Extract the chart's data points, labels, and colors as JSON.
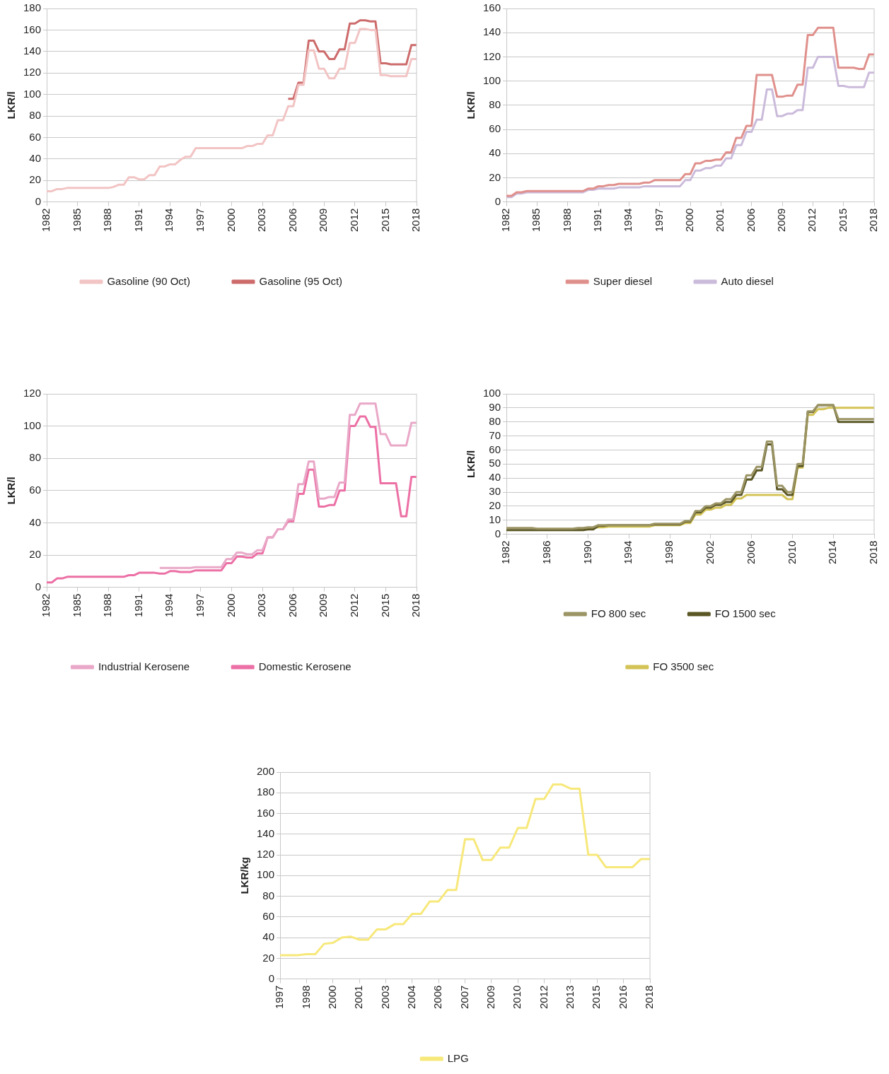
{
  "chart_data": [
    {
      "type": "line",
      "ylabel": "LKR/l",
      "grid": "y",
      "legend": "bottom",
      "marker": "none",
      "categories": [
        "1982",
        null,
        null,
        null,
        null,
        null,
        "1985",
        null,
        null,
        null,
        null,
        null,
        "1988",
        null,
        null,
        null,
        null,
        null,
        "1991",
        null,
        null,
        null,
        null,
        null,
        "1994",
        null,
        null,
        null,
        null,
        null,
        "1997",
        null,
        null,
        null,
        null,
        null,
        "2000",
        null,
        null,
        null,
        null,
        null,
        "2003",
        null,
        null,
        null,
        null,
        null,
        "2006",
        null,
        null,
        null,
        null,
        null,
        "2009",
        null,
        null,
        null,
        null,
        null,
        "2012",
        null,
        null,
        null,
        null,
        null,
        "2015",
        null,
        null,
        null,
        null,
        null,
        "2018"
      ],
      "ylim": [
        0,
        180
      ],
      "yticks": [
        0,
        20,
        40,
        60,
        80,
        100,
        120,
        140,
        160,
        180
      ],
      "series": [
        {
          "name": "Gasoline (90 Oct)",
          "color": "#f2c4c4",
          "values": [
            10,
            10,
            12,
            12,
            13,
            13,
            13,
            13,
            13,
            13,
            13,
            13,
            13,
            14,
            16,
            16,
            23,
            23,
            21,
            21,
            25,
            25,
            33,
            33,
            35,
            35,
            39,
            42,
            42,
            50,
            50,
            50,
            50,
            50,
            50,
            50,
            50,
            50,
            50,
            52,
            52,
            54,
            54,
            62,
            62,
            76,
            76,
            89,
            89,
            109,
            109,
            141,
            141,
            124,
            124,
            115,
            115,
            124,
            124,
            148,
            148,
            161,
            161,
            160,
            160,
            118,
            118,
            117,
            117,
            117,
            117,
            133,
            133
          ]
        },
        {
          "name": "Gasoline (95 Oct)",
          "color": "#cd6b6b",
          "values": [
            null,
            null,
            null,
            null,
            null,
            null,
            null,
            null,
            null,
            null,
            null,
            null,
            null,
            null,
            null,
            null,
            null,
            null,
            null,
            null,
            null,
            null,
            null,
            null,
            null,
            null,
            null,
            null,
            null,
            null,
            null,
            null,
            null,
            null,
            null,
            null,
            null,
            null,
            null,
            null,
            null,
            null,
            null,
            null,
            null,
            null,
            null,
            96,
            96,
            111,
            111,
            150,
            150,
            140,
            140,
            133,
            133,
            142,
            142,
            166,
            166,
            169,
            169,
            168,
            168,
            129,
            129,
            128,
            128,
            128,
            128,
            146,
            146
          ]
        }
      ]
    },
    {
      "type": "line",
      "ylabel": "LKR/l",
      "grid": "y",
      "legend": "bottom",
      "marker": "none",
      "categories": [
        "1982",
        null,
        null,
        null,
        null,
        null,
        "1985",
        null,
        null,
        null,
        null,
        null,
        "1988",
        null,
        null,
        null,
        null,
        null,
        "1991",
        null,
        null,
        null,
        null,
        null,
        "1994",
        null,
        null,
        null,
        null,
        null,
        "1997",
        null,
        null,
        null,
        null,
        null,
        "2000",
        null,
        null,
        null,
        null,
        null,
        "2001",
        null,
        null,
        null,
        null,
        null,
        "2006",
        null,
        null,
        null,
        null,
        null,
        "2009",
        null,
        null,
        null,
        null,
        null,
        "2012",
        null,
        null,
        null,
        null,
        null,
        "2015",
        null,
        null,
        null,
        null,
        null,
        "2018"
      ],
      "ylim": [
        0,
        160
      ],
      "yticks": [
        0,
        20,
        40,
        60,
        80,
        100,
        120,
        140,
        160
      ],
      "series": [
        {
          "name": "Super diesel",
          "color": "#e0908c",
          "values": [
            5,
            5,
            8,
            8,
            9,
            9,
            9,
            9,
            9,
            9,
            9,
            9,
            9,
            9,
            9,
            9,
            11,
            11,
            13,
            13,
            14,
            14,
            15,
            15,
            15,
            15,
            15,
            16,
            16,
            18,
            18,
            18,
            18,
            18,
            18,
            23,
            23,
            32,
            32,
            34,
            34,
            35,
            35,
            41,
            41,
            53,
            53,
            63,
            63,
            105,
            105,
            105,
            105,
            87,
            87,
            88,
            88,
            97,
            97,
            138,
            138,
            144,
            144,
            144,
            144,
            111,
            111,
            111,
            111,
            110,
            110,
            122,
            122
          ]
        },
        {
          "name": "Auto diesel",
          "color": "#cbbbdb",
          "values": [
            4,
            4,
            7,
            7,
            8,
            8,
            8,
            8,
            8,
            8,
            8,
            8,
            8,
            8,
            8,
            8,
            10,
            10,
            11,
            11,
            11,
            11,
            12,
            12,
            12,
            12,
            12,
            13,
            13,
            13,
            13,
            13,
            13,
            13,
            13,
            18,
            18,
            26,
            26,
            28,
            28,
            30,
            30,
            36,
            36,
            47,
            47,
            58,
            58,
            68,
            68,
            93,
            93,
            71,
            71,
            73,
            73,
            76,
            76,
            111,
            111,
            120,
            120,
            120,
            120,
            96,
            96,
            95,
            95,
            95,
            95,
            107,
            107
          ]
        }
      ]
    },
    {
      "type": "line",
      "ylabel": "LKR/l",
      "grid": "y",
      "legend": "bottom",
      "marker": "none",
      "categories": [
        "1982",
        null,
        null,
        null,
        null,
        null,
        "1985",
        null,
        null,
        null,
        null,
        null,
        "1988",
        null,
        null,
        null,
        null,
        null,
        "1991",
        null,
        null,
        null,
        null,
        null,
        "1994",
        null,
        null,
        null,
        null,
        null,
        "1997",
        null,
        null,
        null,
        null,
        null,
        "2000",
        null,
        null,
        null,
        null,
        null,
        "2003",
        null,
        null,
        null,
        null,
        null,
        "2006",
        null,
        null,
        null,
        null,
        null,
        "2009",
        null,
        null,
        null,
        null,
        null,
        "2012",
        null,
        null,
        null,
        null,
        null,
        "2015",
        null,
        null,
        null,
        null,
        null,
        "2018"
      ],
      "ylim": [
        0,
        120
      ],
      "yticks": [
        0,
        20,
        40,
        60,
        80,
        100,
        120
      ],
      "series": [
        {
          "name": "Industrial Kerosene",
          "color": "#e9a8c8",
          "values": [
            null,
            null,
            null,
            null,
            null,
            null,
            null,
            null,
            null,
            null,
            null,
            null,
            null,
            null,
            null,
            null,
            null,
            null,
            null,
            null,
            null,
            null,
            12,
            12,
            12,
            12,
            12,
            12,
            12,
            12.5,
            12.5,
            12.5,
            12.5,
            12.5,
            12.5,
            17.5,
            17.5,
            21.5,
            21.5,
            20.5,
            20.5,
            23,
            23,
            31,
            31,
            36,
            36,
            42,
            42,
            64,
            64,
            78,
            78,
            55,
            55,
            56,
            56,
            65,
            65,
            107,
            107,
            114,
            114,
            114,
            114,
            95,
            95,
            88,
            88,
            88,
            88,
            102,
            102
          ]
        },
        {
          "name": "Domestic Kerosene",
          "color": "#ec70a5",
          "values": [
            3,
            3,
            5.5,
            5.5,
            6.5,
            6.5,
            6.5,
            6.5,
            6.5,
            6.5,
            6.5,
            6.5,
            6.5,
            6.5,
            6.5,
            6.5,
            7.5,
            7.5,
            9,
            9,
            9,
            9,
            8.5,
            8.5,
            10,
            10,
            9.5,
            9.5,
            9.5,
            10.5,
            10.5,
            10.5,
            10.5,
            10.5,
            10.5,
            15,
            15,
            19,
            19,
            18.5,
            18.5,
            21,
            21,
            31,
            31,
            36,
            36,
            41,
            41,
            58,
            58,
            73,
            73,
            50,
            50,
            51,
            51,
            60,
            60,
            100,
            100,
            106,
            106,
            99.5,
            99.5,
            64.5,
            64.5,
            64.5,
            64.5,
            44,
            44,
            68.5,
            68.5
          ]
        }
      ]
    },
    {
      "type": "line",
      "ylabel": "LKR/l",
      "grid": "y",
      "legend": "bottom",
      "marker": "none",
      "categories": [
        "1982",
        null,
        null,
        null,
        null,
        null,
        null,
        null,
        "1986",
        null,
        null,
        null,
        null,
        null,
        null,
        null,
        "1990",
        null,
        null,
        null,
        null,
        null,
        null,
        null,
        "1994",
        null,
        null,
        null,
        null,
        null,
        null,
        null,
        "1998",
        null,
        null,
        null,
        null,
        null,
        null,
        null,
        "2002",
        null,
        null,
        null,
        null,
        null,
        null,
        null,
        "2006",
        null,
        null,
        null,
        null,
        null,
        null,
        null,
        "2010",
        null,
        null,
        null,
        null,
        null,
        null,
        null,
        "2014",
        null,
        null,
        null,
        null,
        null,
        null,
        null,
        "2018"
      ],
      "ylim": [
        0,
        100
      ],
      "yticks": [
        0,
        10,
        20,
        30,
        40,
        50,
        60,
        70,
        80,
        90,
        100
      ],
      "series": [
        {
          "name": "FO 800 sec",
          "color": "#9b9464",
          "values": [
            4.5,
            4.5,
            4.5,
            4.5,
            4.5,
            4.5,
            4,
            4,
            4,
            4,
            4,
            4,
            4,
            4,
            4.5,
            4.5,
            5,
            5,
            6.5,
            6.5,
            6.5,
            6.5,
            6.5,
            6.5,
            6.5,
            6.5,
            6.5,
            6.5,
            6.5,
            7.5,
            7.5,
            7.5,
            7.5,
            7.5,
            7.5,
            9.5,
            9.5,
            16.5,
            16.5,
            20,
            20,
            22,
            22,
            25,
            25,
            30,
            30,
            42,
            42,
            48,
            48,
            66,
            66,
            34.5,
            34.5,
            30,
            30,
            50,
            50,
            87.5,
            87.5,
            92,
            92,
            92,
            92,
            82,
            82,
            82,
            82,
            82,
            82,
            82,
            82
          ]
        },
        {
          "name": "FO 1500 sec",
          "color": "#5b5725",
          "values": [
            3,
            3,
            3,
            3,
            3,
            3,
            3,
            3,
            3,
            3,
            3,
            3,
            3,
            3,
            3,
            3,
            3.5,
            3.5,
            6,
            6,
            6.5,
            6.5,
            6.5,
            6.5,
            6.5,
            6.5,
            6.5,
            6.5,
            6.5,
            7,
            7,
            7,
            7,
            7,
            7,
            9,
            9,
            15.5,
            15.5,
            19,
            19,
            21,
            21,
            23,
            23,
            28,
            28,
            39,
            39,
            45.5,
            45.5,
            64,
            64,
            32,
            32,
            28,
            28,
            48.5,
            48.5,
            87,
            87,
            92,
            92,
            92,
            92,
            80,
            80,
            80,
            80,
            80,
            80,
            80,
            80
          ]
        },
        {
          "name": "FO 3500 sec",
          "color": "#d4c356",
          "values": [
            null,
            null,
            null,
            null,
            null,
            null,
            null,
            null,
            null,
            null,
            null,
            null,
            null,
            null,
            4,
            4,
            4.5,
            4.5,
            5,
            5,
            5.5,
            5.5,
            5.5,
            5.5,
            5.5,
            5.5,
            5.5,
            5.5,
            5.5,
            6.5,
            6.5,
            6.5,
            6.5,
            6.5,
            6.5,
            8,
            8,
            14,
            14,
            17.5,
            17.5,
            19,
            19,
            21,
            21,
            25.5,
            25.5,
            28,
            28,
            28,
            28,
            28,
            28,
            28,
            28,
            25,
            25,
            47.5,
            47.5,
            85,
            85,
            89,
            89,
            90,
            90,
            90,
            90,
            90,
            90,
            90,
            90,
            90,
            90
          ]
        }
      ]
    },
    {
      "type": "line",
      "ylabel": "LKR/kg",
      "grid": "y",
      "legend": "bottom",
      "marker": "none",
      "categories": [
        "1997",
        null,
        null,
        "1998",
        null,
        null,
        "2000",
        null,
        null,
        "2001",
        null,
        null,
        "2003",
        null,
        null,
        "2004",
        null,
        null,
        "2006",
        null,
        null,
        "2007",
        null,
        null,
        "2009",
        null,
        null,
        "2010",
        null,
        null,
        "2012",
        null,
        null,
        "2013",
        null,
        null,
        "2015",
        null,
        null,
        "2016",
        null,
        null,
        "2018"
      ],
      "ylim": [
        0,
        200
      ],
      "yticks": [
        0,
        20,
        40,
        60,
        80,
        100,
        120,
        140,
        160,
        180,
        200
      ],
      "series": [
        {
          "name": "LPG",
          "color": "#f7e87a",
          "values": [
            23,
            23,
            23,
            24,
            24,
            34,
            35,
            40,
            41,
            38,
            38,
            48,
            48,
            53,
            53,
            63,
            63,
            75,
            75,
            86,
            86,
            135,
            135,
            115,
            115,
            127,
            127,
            146,
            146,
            174,
            174,
            188,
            188,
            184,
            184,
            120,
            120,
            108,
            108,
            108,
            108,
            116,
            116
          ]
        }
      ]
    }
  ]
}
